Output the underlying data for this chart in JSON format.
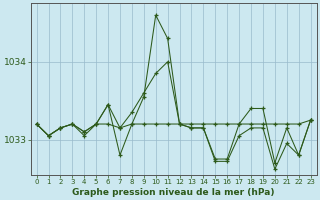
{
  "title": "Graphe pression niveau de la mer (hPa)",
  "background_color": "#cce8f0",
  "grid_color": "#99bbcc",
  "line_color": "#2d5a1b",
  "marker_color": "#2d5a1b",
  "xlim": [
    -0.5,
    23.5
  ],
  "ylim": [
    1032.55,
    1034.75
  ],
  "yticks": [
    1033,
    1034
  ],
  "xticks": [
    0,
    1,
    2,
    3,
    4,
    5,
    6,
    7,
    8,
    9,
    10,
    11,
    12,
    13,
    14,
    15,
    16,
    17,
    18,
    19,
    20,
    21,
    22,
    23
  ],
  "series": [
    [
      1033.2,
      1033.05,
      1033.15,
      1033.2,
      1033.1,
      1033.2,
      1033.45,
      1032.8,
      1033.2,
      1033.55,
      1034.6,
      1034.3,
      1033.2,
      1033.15,
      1033.15,
      1032.75,
      1032.75,
      1033.2,
      1033.4,
      1033.4,
      1032.7,
      1033.15,
      1032.8,
      1033.25
    ],
    [
      1033.2,
      1033.05,
      1033.15,
      1033.2,
      1033.1,
      1033.2,
      1033.2,
      1033.15,
      1033.2,
      1033.2,
      1033.2,
      1033.2,
      1033.2,
      1033.2,
      1033.2,
      1033.2,
      1033.2,
      1033.2,
      1033.2,
      1033.2,
      1033.2,
      1033.2,
      1033.2,
      1033.25
    ],
    [
      1033.2,
      1033.05,
      1033.15,
      1033.2,
      1033.05,
      1033.2,
      1033.45,
      1033.15,
      1033.35,
      1033.6,
      1033.85,
      1034.0,
      1033.2,
      1033.15,
      1033.15,
      1032.72,
      1032.72,
      1033.05,
      1033.15,
      1033.15,
      1032.62,
      1032.95,
      1032.8,
      1033.25
    ]
  ]
}
